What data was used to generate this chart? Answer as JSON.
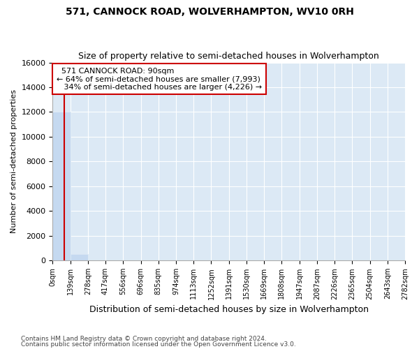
{
  "title": "571, CANNOCK ROAD, WOLVERHAMPTON, WV10 0RH",
  "subtitle": "Size of property relative to semi-detached houses in Wolverhampton",
  "xlabel": "Distribution of semi-detached houses by size in Wolverhampton",
  "ylabel": "Number of semi-detached properties",
  "footnote1": "Contains HM Land Registry data © Crown copyright and database right 2024.",
  "footnote2": "Contains public sector information licensed under the Open Government Licence v3.0.",
  "property_size": 90,
  "property_label": "571 CANNOCK ROAD: 90sqm",
  "pct_smaller": 64,
  "count_smaller": 7993,
  "pct_larger": 34,
  "count_larger": 4226,
  "bin_edges": [
    0,
    139,
    278,
    417,
    556,
    696,
    835,
    974,
    1113,
    1252,
    1391,
    1530,
    1669,
    1808,
    1947,
    2087,
    2226,
    2365,
    2504,
    2643,
    2782
  ],
  "bin_labels": [
    "0sqm",
    "139sqm",
    "278sqm",
    "417sqm",
    "556sqm",
    "696sqm",
    "835sqm",
    "974sqm",
    "1113sqm",
    "1252sqm",
    "1391sqm",
    "1530sqm",
    "1669sqm",
    "1808sqm",
    "1947sqm",
    "2087sqm",
    "2226sqm",
    "2365sqm",
    "2504sqm",
    "2643sqm",
    "2782sqm"
  ],
  "bar_heights": [
    12000,
    500,
    0,
    0,
    0,
    0,
    0,
    0,
    0,
    0,
    0,
    0,
    0,
    0,
    0,
    0,
    0,
    0,
    0,
    0
  ],
  "bar_color": "#c5d9f0",
  "vline_color": "#cc0000",
  "vline_x": 90,
  "ylim": [
    0,
    16000
  ],
  "yticks": [
    0,
    2000,
    4000,
    6000,
    8000,
    10000,
    12000,
    14000,
    16000
  ],
  "plot_bg_color": "#dce9f5",
  "fig_bg_color": "#ffffff",
  "annotation_border_color": "#cc0000",
  "grid_color": "#ffffff"
}
